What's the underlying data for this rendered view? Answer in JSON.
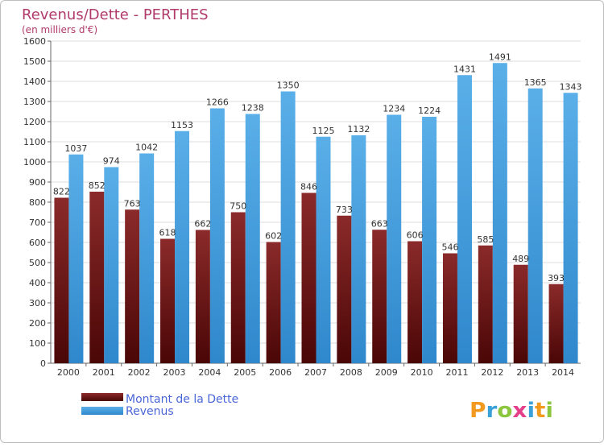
{
  "chart_data": {
    "type": "bar",
    "title": "Revenus/Dette - PERTHES",
    "subtitle": "(en milliers d'€)",
    "categories": [
      "2000",
      "2001",
      "2002",
      "2003",
      "2004",
      "2005",
      "2006",
      "2007",
      "2008",
      "2009",
      "2010",
      "2011",
      "2012",
      "2013",
      "2014"
    ],
    "series": [
      {
        "name": "Montant de la Dette",
        "color": "#7a1a1a",
        "values": [
          822,
          852,
          763,
          618,
          662,
          750,
          602,
          846,
          733,
          663,
          606,
          546,
          585,
          489,
          393
        ]
      },
      {
        "name": "Revenus",
        "color": "#4a9fe0",
        "values": [
          1037,
          974,
          1042,
          1153,
          1266,
          1238,
          1350,
          1125,
          1132,
          1234,
          1224,
          1431,
          1491,
          1365,
          1343
        ]
      }
    ],
    "ylim": [
      0,
      1600
    ],
    "yticks": [
      0,
      100,
      200,
      300,
      400,
      500,
      600,
      700,
      800,
      900,
      1000,
      1100,
      1200,
      1300,
      1400,
      1500,
      1600
    ],
    "grid": true,
    "legend": "bottom-left"
  },
  "brand": "Proxiti"
}
